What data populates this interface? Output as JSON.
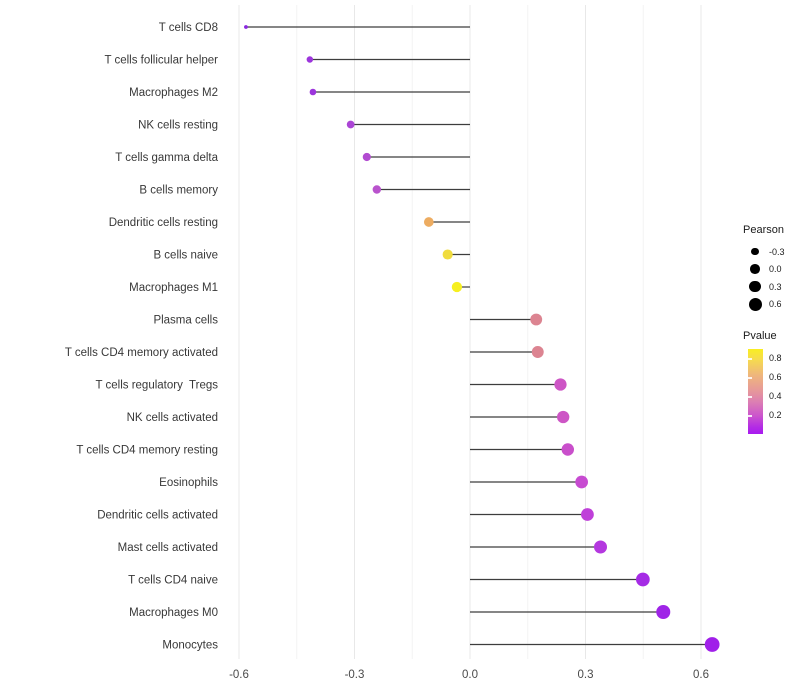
{
  "chart_data": {
    "type": "lollipop",
    "title": "",
    "xlabel": "",
    "ylabel": "",
    "x_axis": {
      "tick_labels": [
        "-0.6",
        "-0.3",
        "0.0",
        "0.3",
        "0.6"
      ],
      "tick_values": [
        -0.6,
        -0.3,
        0.0,
        0.3,
        0.6
      ],
      "minor_gridline_values": [
        -0.45,
        -0.15,
        0.15,
        0.45
      ],
      "range": [
        -0.645,
        0.69
      ],
      "grid": true
    },
    "encoding": {
      "x": "Pearson correlation",
      "y": "immune cell type",
      "size": "Pearson",
      "color": "Pvalue"
    },
    "points": [
      {
        "label": "T cells CD8",
        "pearson": -0.582,
        "pvalue_est": 0.04,
        "color": "#8A28E0"
      },
      {
        "label": "T cells follicular helper",
        "pearson": -0.416,
        "pvalue_est": 0.1,
        "color": "#9C35DC"
      },
      {
        "label": "Macrophages M2",
        "pearson": -0.408,
        "pvalue_est": 0.1,
        "color": "#9C35DC"
      },
      {
        "label": "NK cells resting",
        "pearson": -0.31,
        "pvalue_est": 0.15,
        "color": "#AB45D5"
      },
      {
        "label": "T cells gamma delta",
        "pearson": -0.268,
        "pvalue_est": 0.17,
        "color": "#B24BD1"
      },
      {
        "label": "B cells memory",
        "pearson": -0.242,
        "pvalue_est": 0.19,
        "color": "#B953CD"
      },
      {
        "label": "Dendritic cells resting",
        "pearson": -0.107,
        "pvalue_est": 0.55,
        "color": "#EDAC61"
      },
      {
        "label": "B cells naive",
        "pearson": -0.058,
        "pvalue_est": 0.72,
        "color": "#F0DC3E"
      },
      {
        "label": "Macrophages M1",
        "pearson": -0.034,
        "pvalue_est": 0.85,
        "color": "#F6EF20"
      },
      {
        "label": "Plasma cells",
        "pearson": 0.172,
        "pvalue_est": 0.4,
        "color": "#DC8491"
      },
      {
        "label": "T cells CD4 memory activated",
        "pearson": 0.176,
        "pvalue_est": 0.4,
        "color": "#DC8491"
      },
      {
        "label": "T cells regulatory  Tregs",
        "pearson": 0.235,
        "pvalue_est": 0.23,
        "color": "#CD55C5"
      },
      {
        "label": "NK cells activated",
        "pearson": 0.242,
        "pvalue_est": 0.23,
        "color": "#CD55C5"
      },
      {
        "label": "T cells CD4 memory resting",
        "pearson": 0.254,
        "pvalue_est": 0.21,
        "color": "#C94FCB"
      },
      {
        "label": "Eosinophils",
        "pearson": 0.29,
        "pvalue_est": 0.19,
        "color": "#C74BD1"
      },
      {
        "label": "Dendritic cells activated",
        "pearson": 0.305,
        "pvalue_est": 0.16,
        "color": "#BF40D9"
      },
      {
        "label": "Mast cells activated",
        "pearson": 0.339,
        "pvalue_est": 0.13,
        "color": "#B438DF"
      },
      {
        "label": "T cells CD4 naive",
        "pearson": 0.449,
        "pvalue_est": 0.08,
        "color": "#A52BE5"
      },
      {
        "label": "Macrophages M0",
        "pearson": 0.502,
        "pvalue_est": 0.06,
        "color": "#9F24E7"
      },
      {
        "label": "Monocytes",
        "pearson": 0.629,
        "pvalue_est": 0.05,
        "color": "#A01FE9"
      }
    ],
    "legend": {
      "pearson_size": {
        "title": "Pearson",
        "dot_color": "#000000",
        "items": [
          {
            "label": "-0.3",
            "value": -0.3
          },
          {
            "label": "0.0",
            "value": 0.0
          },
          {
            "label": "0.3",
            "value": 0.3
          },
          {
            "label": "0.6",
            "value": 0.6
          }
        ]
      },
      "pvalue_color": {
        "title": "Pvalue",
        "scale_max": 0.9,
        "ticks": [
          {
            "label": "0.8",
            "value": 0.8
          },
          {
            "label": "0.6",
            "value": 0.6
          },
          {
            "label": "0.4",
            "value": 0.4
          },
          {
            "label": "0.2",
            "value": 0.2
          }
        ],
        "gradient_stops": [
          "#F9EE22",
          "#F6DC4D",
          "#EFB77B",
          "#E79A98",
          "#DC7FB2",
          "#CC56CC",
          "#B32BE5",
          "#A81AF0"
        ]
      }
    },
    "colors": {
      "background": "#ffffff",
      "stem": "#3d3d3d",
      "grid_major": "#e8e8e8",
      "grid_minor": "#f4f4f4",
      "axis_text": "#4a4a4a",
      "label_text": "#383838"
    }
  }
}
